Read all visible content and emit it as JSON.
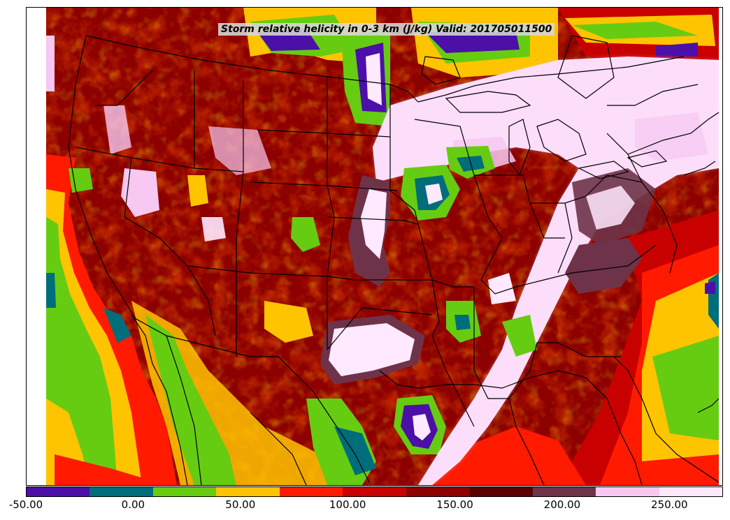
{
  "title": "Storm relative helicity in 0-3 km (J/kg) Valid: 201705011500",
  "colorbar": {
    "min": -50,
    "max": 275,
    "step": 25,
    "colors": [
      "#4c0fa8",
      "#006d7a",
      "#66cc11",
      "#ffc400",
      "#ff1a00",
      "#c80000",
      "#8c0000",
      "#5a0000",
      "#6e3348",
      "#f7c8f1",
      "#ffe9ff"
    ],
    "tick_labels": [
      "-50.00",
      "0.00",
      "50.00",
      "100.00",
      "150.00",
      "200.00",
      "250.00"
    ],
    "tick_values": [
      -50,
      0,
      50,
      100,
      150,
      200,
      250
    ]
  },
  "field_colors": {
    "ocean_west": "#66cc11",
    "ocean_east": "#66cc11",
    "land_base": "#8c0000",
    "high_srh": "#ffe9ff",
    "borders": "#000000"
  }
}
